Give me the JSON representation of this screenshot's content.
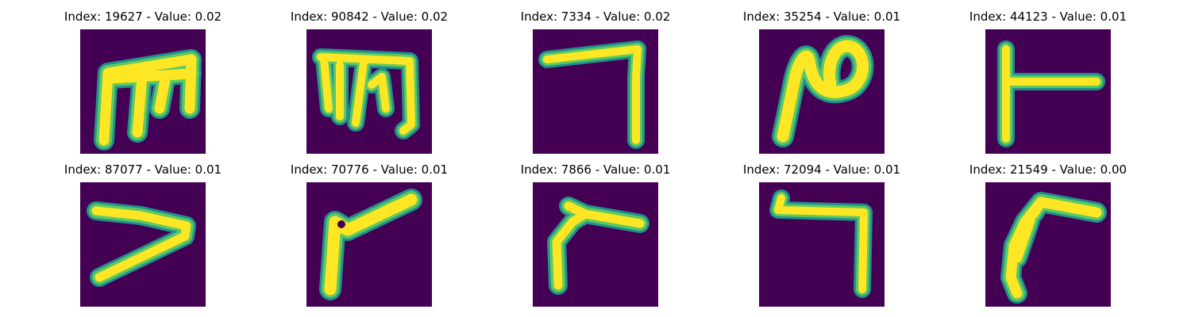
{
  "colors": {
    "background": "#440154",
    "stroke_core": "#fde725",
    "stroke_mid": "#5ec962",
    "stroke_edge": "#21918c"
  },
  "panels": [
    {
      "title": "Index: 19627 - Value: 0.02",
      "index": 19627,
      "value": 0.02
    },
    {
      "title": "Index: 90842 - Value: 0.02",
      "index": 90842,
      "value": 0.02
    },
    {
      "title": "Index: 7334 - Value: 0.02",
      "index": 7334,
      "value": 0.02
    },
    {
      "title": "Index: 35254 - Value: 0.01",
      "index": 35254,
      "value": 0.01
    },
    {
      "title": "Index: 44123 - Value: 0.01",
      "index": 44123,
      "value": 0.01
    },
    {
      "title": "Index: 87077 - Value: 0.01",
      "index": 87077,
      "value": 0.01
    },
    {
      "title": "Index: 70776 - Value: 0.01",
      "index": 70776,
      "value": 0.01
    },
    {
      "title": "Index: 7866 - Value: 0.01",
      "index": 7866,
      "value": 0.01
    },
    {
      "title": "Index: 72094 - Value: 0.01",
      "index": 72094,
      "value": 0.01
    },
    {
      "title": "Index: 21549 - Value: 0.00",
      "index": 21549,
      "value": 0.0
    }
  ]
}
